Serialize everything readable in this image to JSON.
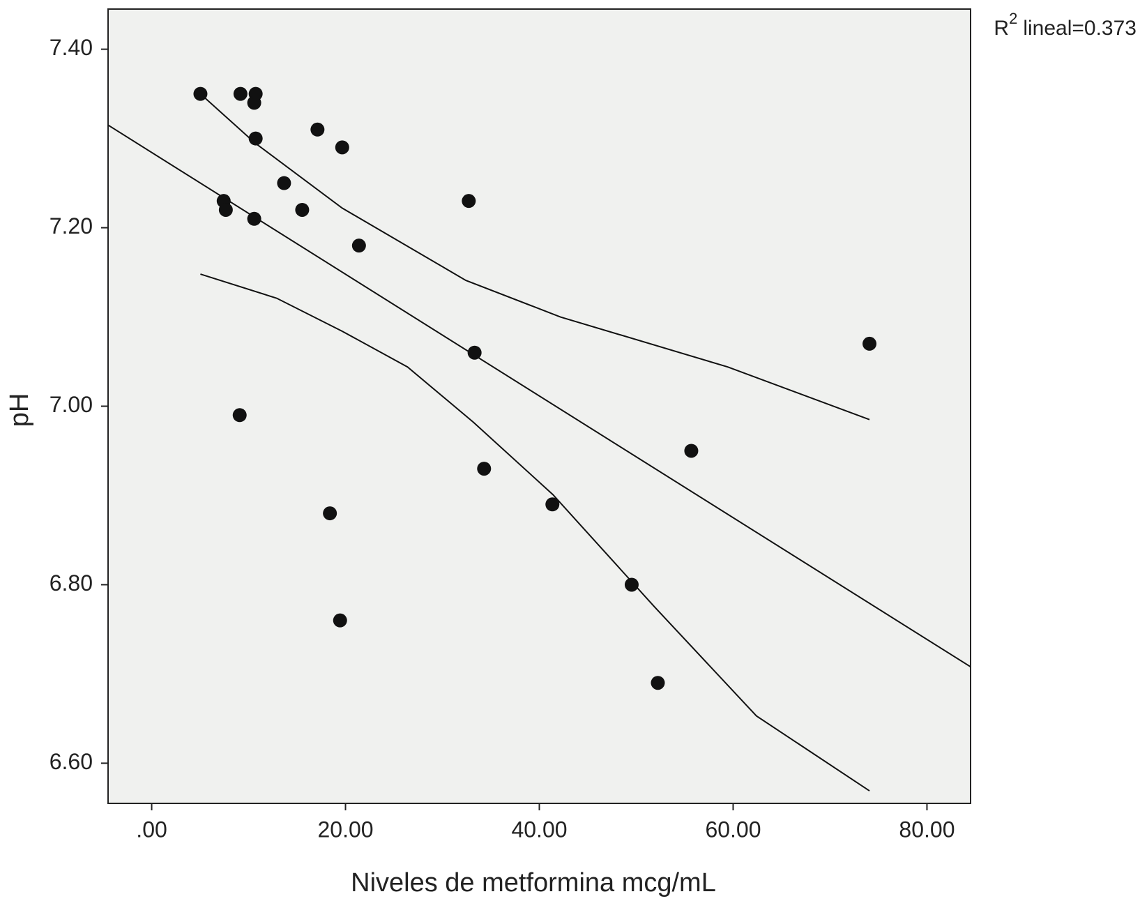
{
  "chart_data": {
    "type": "scatter",
    "annotation": [
      "R",
      "2",
      "lineal=0.373"
    ],
    "x_label": "Niveles de metformina mcg/mL",
    "y_label": "pH",
    "x": [
      5.03,
      9.16,
      10.73,
      10.58,
      10.73,
      17.11,
      19.66,
      13.66,
      7.43,
      7.65,
      10.58,
      15.53,
      21.39,
      32.72,
      33.32,
      74.07,
      9.08,
      55.68,
      34.3,
      18.39,
      41.35,
      49.53,
      19.44,
      52.23
    ],
    "values": [
      7.35,
      7.35,
      7.35,
      7.34,
      7.3,
      7.31,
      7.29,
      7.25,
      7.23,
      7.22,
      7.21,
      7.22,
      7.18,
      7.23,
      7.06,
      7.07,
      6.99,
      6.95,
      6.93,
      6.88,
      6.89,
      6.8,
      6.76,
      6.69
    ],
    "color": "#111111",
    "background": "#f0f1ef",
    "lines": [
      {
        "x": [
          -4.5,
          84.5
        ],
        "values": [
          7.315,
          6.708
        ]
      },
      {
        "x": [
          5.03,
          10.66,
          19.66,
          32.42,
          42.18,
          59.44,
          74.07
        ],
        "values": [
          7.35,
          7.295,
          7.222,
          7.141,
          7.1,
          7.044,
          6.985
        ]
      },
      {
        "x": [
          5.03,
          12.9,
          19.66,
          26.4,
          33.2,
          41.4,
          51.9,
          62.4,
          74.07
        ],
        "values": [
          7.148,
          7.121,
          7.084,
          7.044,
          6.982,
          6.901,
          6.775,
          6.653,
          6.569
        ]
      }
    ],
    "line_color": "#111111",
    "xlim": [
      -4.5,
      84.5
    ],
    "ylim": [
      6.555,
      7.445
    ],
    "xticks": [
      {
        "value": 0,
        "label": ".00"
      },
      {
        "value": 20,
        "label": "20.00"
      },
      {
        "value": 40,
        "label": "40.00"
      },
      {
        "value": 60,
        "label": "60.00"
      },
      {
        "value": 80,
        "label": "80.00"
      }
    ],
    "yticks": [
      {
        "value": 6.6,
        "label": "6.60"
      },
      {
        "value": 6.8,
        "label": "6.80"
      },
      {
        "value": 7.0,
        "label": "7.00"
      },
      {
        "value": 7.2,
        "label": "7.20"
      },
      {
        "value": 7.4,
        "label": "7.40"
      }
    ]
  }
}
